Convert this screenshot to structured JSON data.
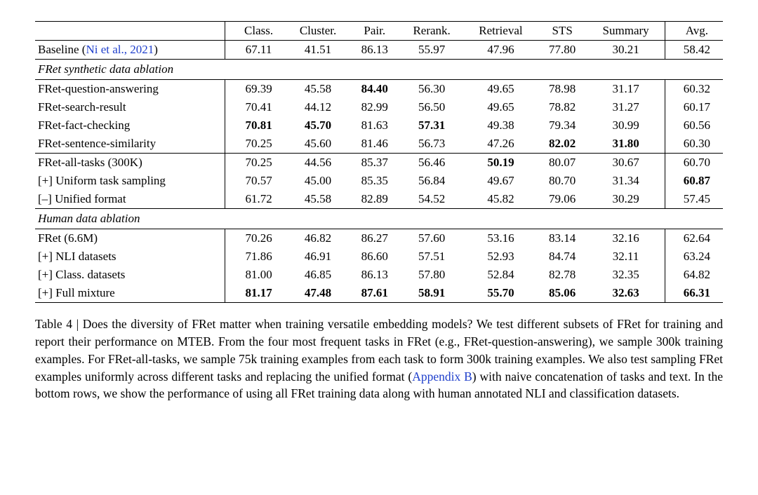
{
  "table": {
    "columns": [
      "Class.",
      "Cluster.",
      "Pair.",
      "Rerank.",
      "Retrieval",
      "STS",
      "Summary",
      "Avg."
    ],
    "baseline": {
      "label_prefix": "Baseline (",
      "label_cite": "Ni et al., 2021",
      "label_suffix": ")",
      "values": [
        "67.11",
        "41.51",
        "86.13",
        "55.97",
        "47.96",
        "77.80",
        "30.21",
        "58.42"
      ]
    },
    "section1": {
      "title": "FRet synthetic data ablation",
      "rows": [
        {
          "label": "FRet-question-answering",
          "values": [
            "69.39",
            "45.58",
            "84.40",
            "56.30",
            "49.65",
            "78.98",
            "31.17",
            "60.32"
          ],
          "bold": [
            false,
            false,
            true,
            false,
            false,
            false,
            false,
            false
          ]
        },
        {
          "label": "FRet-search-result",
          "values": [
            "70.41",
            "44.12",
            "82.99",
            "56.50",
            "49.65",
            "78.82",
            "31.27",
            "60.17"
          ],
          "bold": [
            false,
            false,
            false,
            false,
            false,
            false,
            false,
            false
          ]
        },
        {
          "label": "FRet-fact-checking",
          "values": [
            "70.81",
            "45.70",
            "81.63",
            "57.31",
            "49.38",
            "79.34",
            "30.99",
            "60.56"
          ],
          "bold": [
            true,
            true,
            false,
            true,
            false,
            false,
            false,
            false
          ]
        },
        {
          "label": "FRet-sentence-similarity",
          "values": [
            "70.25",
            "45.60",
            "81.46",
            "56.73",
            "47.26",
            "82.02",
            "31.80",
            "60.30"
          ],
          "bold": [
            false,
            false,
            false,
            false,
            false,
            true,
            true,
            false
          ]
        }
      ]
    },
    "section2": {
      "rows": [
        {
          "label": "FRet-all-tasks (300K)",
          "values": [
            "70.25",
            "44.56",
            "85.37",
            "56.46",
            "50.19",
            "80.07",
            "30.67",
            "60.70"
          ],
          "bold": [
            false,
            false,
            false,
            false,
            true,
            false,
            false,
            false
          ]
        },
        {
          "label": "[+] Uniform task sampling",
          "values": [
            "70.57",
            "45.00",
            "85.35",
            "56.84",
            "49.67",
            "80.70",
            "31.34",
            "60.87"
          ],
          "bold": [
            false,
            false,
            false,
            false,
            false,
            false,
            false,
            true
          ]
        },
        {
          "label": "[–] Unified format",
          "values": [
            "61.72",
            "45.58",
            "82.89",
            "54.52",
            "45.82",
            "79.06",
            "30.29",
            "57.45"
          ],
          "bold": [
            false,
            false,
            false,
            false,
            false,
            false,
            false,
            false
          ]
        }
      ]
    },
    "section3": {
      "title": "Human data ablation",
      "rows": [
        {
          "label": "FRet (6.6M)",
          "values": [
            "70.26",
            "46.82",
            "86.27",
            "57.60",
            "53.16",
            "83.14",
            "32.16",
            "62.64"
          ],
          "bold": [
            false,
            false,
            false,
            false,
            false,
            false,
            false,
            false
          ]
        },
        {
          "label": "[+] NLI datasets",
          "values": [
            "71.86",
            "46.91",
            "86.60",
            "57.51",
            "52.93",
            "84.74",
            "32.11",
            "63.24"
          ],
          "bold": [
            false,
            false,
            false,
            false,
            false,
            false,
            false,
            false
          ]
        },
        {
          "label": "[+] Class. datasets",
          "values": [
            "81.00",
            "46.85",
            "86.13",
            "57.80",
            "52.84",
            "82.78",
            "32.35",
            "64.82"
          ],
          "bold": [
            false,
            false,
            false,
            false,
            false,
            false,
            false,
            false
          ]
        },
        {
          "label": "[+] Full mixture",
          "values": [
            "81.17",
            "47.48",
            "87.61",
            "58.91",
            "55.70",
            "85.06",
            "32.63",
            "66.31"
          ],
          "bold": [
            true,
            true,
            true,
            true,
            true,
            true,
            true,
            true
          ]
        }
      ]
    }
  },
  "caption": {
    "lead": "Table 4 | ",
    "p1": "Does the diversity of FRet matter when training versatile embedding models? We test different subsets of FRet for training and report their performance on MTEB. From the four most frequent tasks in FRet (e.g., FRet-question-answering), we sample 300k training examples. For FRet-all-tasks, we sample 75k training examples from each task to form 300k training examples. We also test sampling FRet examples uniformly across different tasks and replacing the unified format (",
    "ref": "Appendix B",
    "p2": ") with naive concatenation of tasks and text. In the bottom rows, we show the performance of using all FRet training data along with human annotated NLI and classification datasets."
  }
}
